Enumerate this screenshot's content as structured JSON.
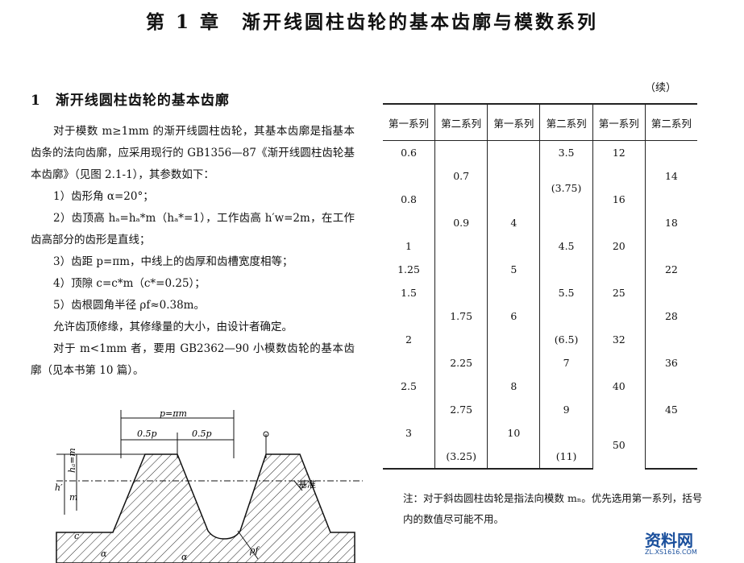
{
  "header": {
    "title": "第 1 章　渐开线圆柱齿轮的基本齿廓与模数系列"
  },
  "section": {
    "heading": "1　渐开线圆柱齿轮的基本齿廓",
    "paragraphs": [
      "对于模数 m≥1mm 的渐开线圆柱齿轮，其基本齿廓是指基本齿条的法向齿廓，应采用现行的 GB1356—87《渐开线圆柱齿轮基本齿廓》（见图 2.1-1），其参数如下：",
      "1）齿形角 α=20°；",
      "2）齿顶高 hₐ=hₐ*m（hₐ*=1），工作齿高 h′w=2m，在工作齿高部分的齿形是直线；",
      "3）齿距 p=πm，中线上的齿厚和齿槽宽度相等；",
      "4）顶隙 c=c*m（c*=0.25）；",
      "5）齿根圆角半径 ρf≈0.38m。",
      "允许齿顶修缘，其修缘量的大小，由设计者确定。",
      "对于 m<1mm 者，要用 GB2362—90 小模数齿轮的基本齿廓（见本书第 10 篇）。"
    ]
  },
  "figure": {
    "labels": {
      "pitch": "p=πm",
      "half_left": "0.5p",
      "half_right": "0.5p",
      "working_height": "h′",
      "addendum": "hₐ=m",
      "dedendum": "m",
      "clearance": "c",
      "fillet": "ρf",
      "alpha_left": "α",
      "alpha_right": "α",
      "datum": "基准"
    }
  },
  "table": {
    "continued": "（续）",
    "headers": [
      "第一系列",
      "第二系列",
      "第一系列",
      "第二系列",
      "第一系列",
      "第二系列"
    ],
    "rows": [
      [
        "0.6",
        null,
        null,
        "3.5",
        "12",
        null
      ],
      [
        null,
        "0.7",
        null,
        "(3.75)",
        null,
        "14"
      ],
      [
        "0.8",
        null,
        null,
        null,
        "16",
        null
      ],
      [
        null,
        "0.9",
        "4",
        null,
        null,
        "18"
      ],
      [
        "1",
        null,
        null,
        "4.5",
        "20",
        null
      ],
      [
        "1.25",
        null,
        "5",
        null,
        null,
        "22"
      ],
      [
        "1.5",
        null,
        null,
        "5.5",
        "25",
        null
      ],
      [
        null,
        "1.75",
        "6",
        null,
        null,
        "28"
      ],
      [
        "2",
        null,
        null,
        "(6.5)",
        "32",
        null
      ],
      [
        null,
        "2.25",
        null,
        "7",
        null,
        "36"
      ],
      [
        "2.5",
        null,
        "8",
        null,
        "40",
        null
      ],
      [
        null,
        "2.75",
        null,
        "9",
        null,
        "45"
      ],
      [
        "3",
        null,
        "10",
        null,
        "50",
        null
      ],
      [
        null,
        "(3.25)",
        null,
        "(11)",
        null,
        null
      ]
    ],
    "note": "注：对于斜齿圆柱齿轮是指法向模数 mₙ。优先选用第一系列，括号内的数值尽可能不用。"
  },
  "watermark": {
    "name": "资料网",
    "url": "ZL.XS1616.COM"
  }
}
